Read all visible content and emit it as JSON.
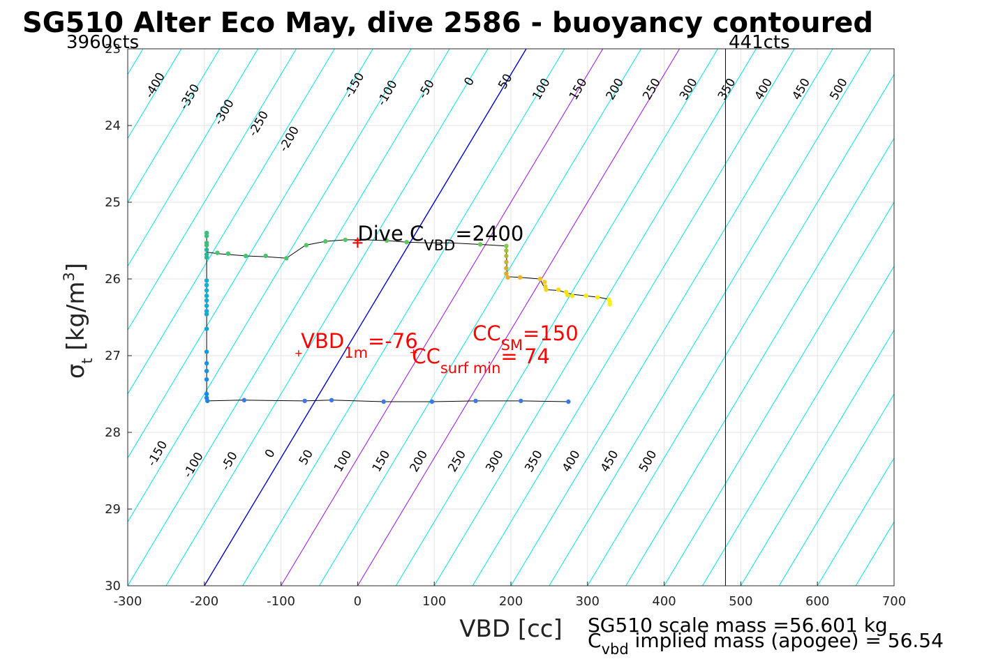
{
  "chart_data": {
    "type": "scatter",
    "title": "SG510 Alter Eco May, dive 2586 - buoyancy contoured",
    "xlabel": "VBD [cc]",
    "ylabel": {
      "base": "σ",
      "sub": "t",
      "text": " [kg/m",
      "sup": "3",
      "close": "]"
    },
    "xlim": [
      -300,
      700
    ],
    "ylim": [
      23,
      30
    ],
    "y_reversed": true,
    "grid": true,
    "xticks": [
      -300,
      -200,
      -100,
      0,
      100,
      200,
      300,
      400,
      500,
      600,
      700
    ],
    "yticks": [
      23,
      24,
      25,
      26,
      27,
      28,
      29,
      30
    ],
    "corner_left": "3960cts",
    "corner_right": "441cts",
    "vertical_line_x": 480,
    "contours": {
      "colors": {
        "default": "#00e5e5",
        "zero": "#0000cd",
        "highlight": "#a020f0"
      },
      "highlight_levels": [
        100,
        200
      ],
      "levels": [
        -400,
        -350,
        -300,
        -250,
        -200,
        -150,
        -100,
        -50,
        0,
        50,
        100,
        150,
        200,
        250,
        300,
        350,
        400,
        450,
        500
      ],
      "x_at_bottom": [
        -700,
        -650,
        -600,
        -550,
        -500,
        -450,
        -400,
        -350,
        -300,
        -250,
        -200,
        -150,
        -100,
        -50,
        0,
        50,
        100,
        150,
        200,
        250,
        300,
        350,
        400,
        450,
        500,
        550,
        600,
        650,
        700
      ],
      "slope_vbd_per_sigma": 60,
      "top_labels": [
        {
          "text": "-400",
          "x": -260,
          "y": 23.5
        },
        {
          "text": "-350",
          "x": -215,
          "y": 23.65
        },
        {
          "text": "-300",
          "x": -170,
          "y": 23.85
        },
        {
          "text": "-250",
          "x": -125,
          "y": 24.0
        },
        {
          "text": "-200",
          "x": -85,
          "y": 24.2
        },
        {
          "text": "-150",
          "x": 0,
          "y": 23.5
        },
        {
          "text": "-100",
          "x": 43,
          "y": 23.6
        },
        {
          "text": "-50",
          "x": 94,
          "y": 23.55
        },
        {
          "text": "0",
          "x": 150,
          "y": 23.45
        },
        {
          "text": "50",
          "x": 197,
          "y": 23.45
        },
        {
          "text": "100",
          "x": 244,
          "y": 23.55
        },
        {
          "text": "150",
          "x": 292,
          "y": 23.55
        },
        {
          "text": "200",
          "x": 340,
          "y": 23.55
        },
        {
          "text": "250",
          "x": 388,
          "y": 23.55
        },
        {
          "text": "300",
          "x": 436,
          "y": 23.55
        },
        {
          "text": "350",
          "x": 486,
          "y": 23.55
        },
        {
          "text": "400",
          "x": 534,
          "y": 23.55
        },
        {
          "text": "450",
          "x": 583,
          "y": 23.55
        },
        {
          "text": "500",
          "x": 632,
          "y": 23.55
        }
      ],
      "bottom_labels": [
        {
          "text": "-150",
          "x": -257,
          "y": 28.3
        },
        {
          "text": "-100",
          "x": -210,
          "y": 28.45
        },
        {
          "text": "-50",
          "x": -163,
          "y": 28.4
        },
        {
          "text": "0",
          "x": -110,
          "y": 28.3
        },
        {
          "text": "50",
          "x": -63,
          "y": 28.35
        },
        {
          "text": "100",
          "x": -15,
          "y": 28.4
        },
        {
          "text": "150",
          "x": 35,
          "y": 28.4
        },
        {
          "text": "200",
          "x": 84,
          "y": 28.4
        },
        {
          "text": "250",
          "x": 134,
          "y": 28.4
        },
        {
          "text": "300",
          "x": 183,
          "y": 28.4
        },
        {
          "text": "350",
          "x": 234,
          "y": 28.4
        },
        {
          "text": "400",
          "x": 283,
          "y": 28.4
        },
        {
          "text": "450",
          "x": 333,
          "y": 28.4
        },
        {
          "text": "500",
          "x": 383,
          "y": 28.4
        }
      ]
    },
    "track": [
      [
        -197,
        25.4
      ],
      [
        -197,
        25.65
      ],
      [
        -183,
        25.67
      ],
      [
        -170,
        25.68
      ],
      [
        -146,
        25.7
      ],
      [
        -120,
        25.71
      ],
      [
        -93,
        25.73
      ],
      [
        -68,
        25.56
      ],
      [
        -42,
        25.51
      ],
      [
        -16,
        25.49
      ],
      [
        10,
        25.49
      ],
      [
        38,
        25.5
      ],
      [
        64,
        25.52
      ],
      [
        92,
        25.53
      ],
      [
        120,
        25.53
      ],
      [
        160,
        25.55
      ],
      [
        194,
        25.57
      ],
      [
        195,
        25.97
      ],
      [
        212,
        25.98
      ],
      [
        238,
        26.0
      ],
      [
        245,
        26.14
      ],
      [
        262,
        26.15
      ],
      [
        280,
        26.2
      ],
      [
        298,
        26.22
      ],
      [
        315,
        26.24
      ],
      [
        330,
        26.27
      ],
      [
        330,
        26.31
      ]
    ],
    "track_descent": [
      [
        -197,
        25.7
      ],
      [
        -197,
        26.0
      ],
      [
        -197,
        26.5
      ],
      [
        -197,
        27.0
      ],
      [
        -197,
        27.5
      ],
      [
        -196,
        27.59
      ],
      [
        -150,
        27.58
      ],
      [
        -70,
        27.59
      ],
      [
        -34,
        27.58
      ],
      [
        34,
        27.6
      ],
      [
        97,
        27.6
      ],
      [
        154,
        27.59
      ],
      [
        212,
        27.59
      ],
      [
        275,
        27.6
      ]
    ],
    "points": [
      {
        "x": -197,
        "y": 25.4,
        "c": "#3cbf78"
      },
      {
        "x": -197,
        "y": 25.44,
        "c": "#3cbf78"
      },
      {
        "x": -197,
        "y": 25.53,
        "c": "#3cbf78"
      },
      {
        "x": -197,
        "y": 25.56,
        "c": "#3cbf78"
      },
      {
        "x": -197,
        "y": 25.62,
        "c": "#2cb59a"
      },
      {
        "x": -197,
        "y": 25.68,
        "c": "#2cb59a"
      },
      {
        "x": -197,
        "y": 25.72,
        "c": "#2cb59a"
      },
      {
        "x": -183,
        "y": 25.66,
        "c": "#48c26e"
      },
      {
        "x": -169,
        "y": 25.67,
        "c": "#48c26e"
      },
      {
        "x": -146,
        "y": 25.7,
        "c": "#48c26e"
      },
      {
        "x": -120,
        "y": 25.7,
        "c": "#48c26e"
      },
      {
        "x": -93,
        "y": 25.73,
        "c": "#48c26e"
      },
      {
        "x": -67,
        "y": 25.56,
        "c": "#52c566"
      },
      {
        "x": -42,
        "y": 25.51,
        "c": "#52c566"
      },
      {
        "x": -16,
        "y": 25.49,
        "c": "#52c566"
      },
      {
        "x": 38,
        "y": 25.5,
        "c": "#5cc85c"
      },
      {
        "x": 64,
        "y": 25.52,
        "c": "#5cc85c"
      },
      {
        "x": 160,
        "y": 25.55,
        "c": "#6ccb52"
      },
      {
        "x": 194,
        "y": 25.57,
        "c": "#7fcd48"
      },
      {
        "x": 194,
        "y": 25.63,
        "c": "#a0c03a"
      },
      {
        "x": 194,
        "y": 25.7,
        "c": "#b8b838"
      },
      {
        "x": 194,
        "y": 25.78,
        "c": "#c8b232"
      },
      {
        "x": 194,
        "y": 25.86,
        "c": "#d4ac2e"
      },
      {
        "x": 194,
        "y": 25.93,
        "c": "#e0a82a"
      },
      {
        "x": 196,
        "y": 25.98,
        "c": "#e8ac28"
      },
      {
        "x": 212,
        "y": 25.98,
        "c": "#f0b428"
      },
      {
        "x": 238,
        "y": 26.0,
        "c": "#f4c024"
      },
      {
        "x": 244,
        "y": 26.04,
        "c": "#f4c824"
      },
      {
        "x": 245,
        "y": 26.1,
        "c": "#f6d020"
      },
      {
        "x": 246,
        "y": 26.14,
        "c": "#f6d420"
      },
      {
        "x": 262,
        "y": 26.14,
        "c": "#f8dc1c"
      },
      {
        "x": 272,
        "y": 26.17,
        "c": "#f8e01c"
      },
      {
        "x": 274,
        "y": 26.21,
        "c": "#f8e01c"
      },
      {
        "x": 280,
        "y": 26.22,
        "c": "#fae418"
      },
      {
        "x": 298,
        "y": 26.22,
        "c": "#fae818"
      },
      {
        "x": 313,
        "y": 26.24,
        "c": "#fcec14"
      },
      {
        "x": 328,
        "y": 26.27,
        "c": "#fef010"
      },
      {
        "x": 329,
        "y": 26.3,
        "c": "#fef010"
      },
      {
        "x": 329,
        "y": 26.33,
        "c": "#fef010"
      },
      {
        "x": -197,
        "y": 26.02,
        "c": "#15aed0"
      },
      {
        "x": -197,
        "y": 26.08,
        "c": "#15aed0"
      },
      {
        "x": -197,
        "y": 26.15,
        "c": "#15aed0"
      },
      {
        "x": -197,
        "y": 26.22,
        "c": "#15aed0"
      },
      {
        "x": -197,
        "y": 26.28,
        "c": "#14aad4"
      },
      {
        "x": -197,
        "y": 26.35,
        "c": "#14aad4"
      },
      {
        "x": -197,
        "y": 26.42,
        "c": "#14aad4"
      },
      {
        "x": -197,
        "y": 26.46,
        "c": "#14aad4"
      },
      {
        "x": -197,
        "y": 26.65,
        "c": "#12a2da"
      },
      {
        "x": -197,
        "y": 26.95,
        "c": "#129ade"
      },
      {
        "x": -197,
        "y": 27.1,
        "c": "#1294e2"
      },
      {
        "x": -197,
        "y": 27.2,
        "c": "#1294e2"
      },
      {
        "x": -197,
        "y": 27.31,
        "c": "#128ee4"
      },
      {
        "x": -197,
        "y": 27.5,
        "c": "#1a86e6"
      },
      {
        "x": -197,
        "y": 27.55,
        "c": "#1a86e6"
      },
      {
        "x": -196,
        "y": 27.59,
        "c": "#2080e8"
      },
      {
        "x": -148,
        "y": 27.58,
        "c": "#3a78ea"
      },
      {
        "x": -69,
        "y": 27.59,
        "c": "#3a78ea"
      },
      {
        "x": -34,
        "y": 27.58,
        "c": "#3a78ea"
      },
      {
        "x": 34,
        "y": 27.6,
        "c": "#3a78ea"
      },
      {
        "x": 97,
        "y": 27.6,
        "c": "#3a78ea"
      },
      {
        "x": 154,
        "y": 27.59,
        "c": "#3a78ea"
      },
      {
        "x": 213,
        "y": 27.59,
        "c": "#3a78ea"
      },
      {
        "x": 275,
        "y": 27.6,
        "c": "#3a78ea"
      }
    ],
    "markers": [
      {
        "x": 0,
        "y": 25.53,
        "size": "large"
      },
      {
        "x": -77,
        "y": 26.97,
        "size": "small"
      },
      {
        "x": 73,
        "y": 26.96,
        "size": "small"
      },
      {
        "x": 0,
        "y": 25.5,
        "size": "small"
      }
    ],
    "annotations": {
      "dive_cvbd": {
        "pre": "Dive C",
        "sub": "VBD",
        "post": "=2400",
        "x": 0,
        "y": 25.5
      },
      "vbd_1m": {
        "pre": "VBD",
        "sub": "1m",
        "post": "=-76",
        "x": -74,
        "y": 26.9
      },
      "cc_sm": {
        "pre": "CC",
        "sub": "SM",
        "post": "=150",
        "x": 150,
        "y": 26.8
      },
      "cc_surf_min": {
        "pre": "CC",
        "sub": "surf min",
        "post": "= 74",
        "x": 71,
        "y": 27.1
      }
    },
    "footer": {
      "line1": "SG510 scale mass =56.601 kg",
      "line2_pre": "C",
      "line2_sub": "vbd",
      "line2_post": " implied mass (apogee) = 56.54"
    }
  }
}
